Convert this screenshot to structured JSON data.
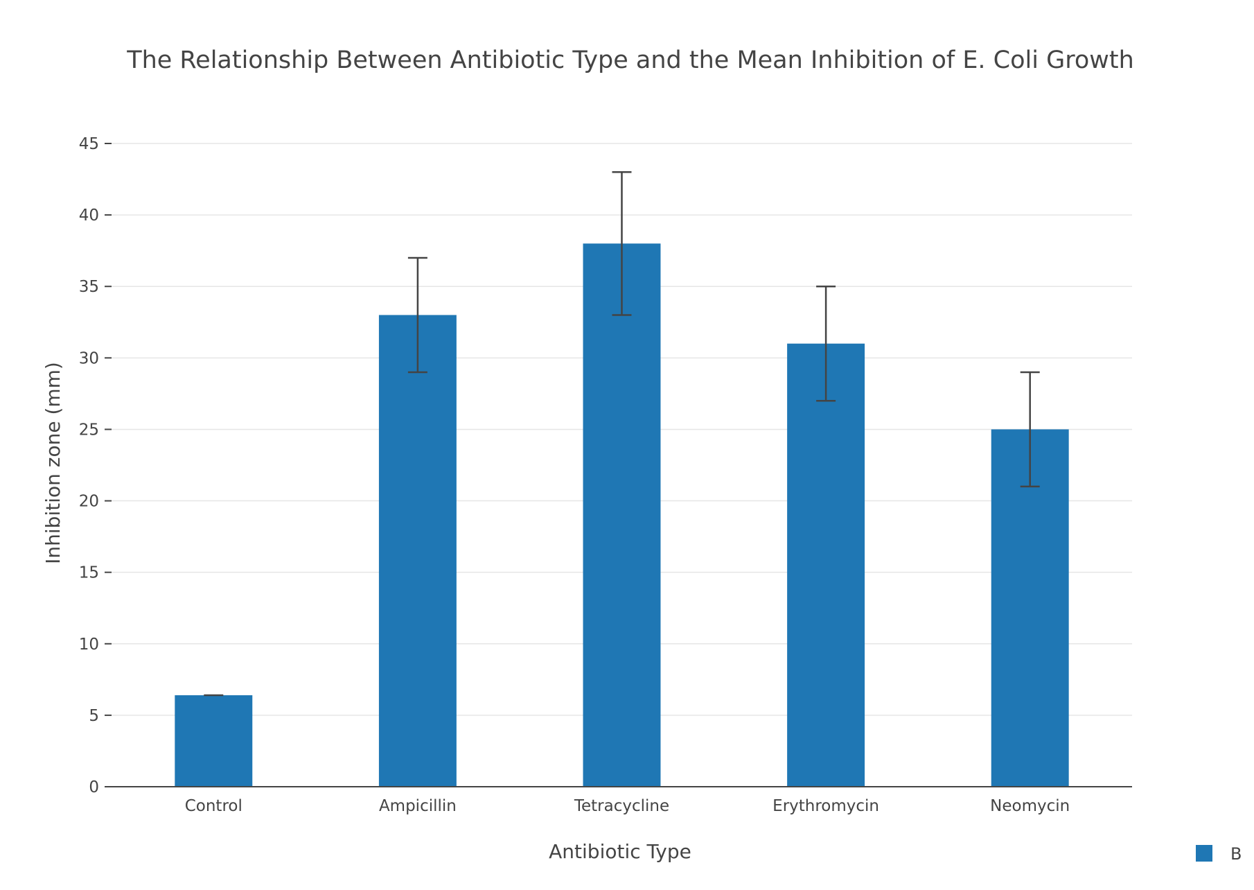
{
  "chart_data": {
    "type": "bar",
    "title": "The Relationship Between Antibiotic Type and the Mean Inhibition of E. Coli Growth",
    "xlabel": "Antibiotic Type",
    "ylabel": "Inhibition zone (mm)",
    "categories": [
      "Control",
      "Ampicillin",
      "Tetracycline",
      "Erythromycin",
      "Neomycin"
    ],
    "series": [
      {
        "name": "B",
        "values": [
          6.4,
          33,
          38,
          31,
          25
        ],
        "error": [
          0,
          4,
          5,
          4,
          4
        ],
        "color": "#1f77b4"
      }
    ],
    "ylim": [
      0,
      45
    ],
    "yticks": [
      0,
      5,
      10,
      15,
      20,
      25,
      30,
      35,
      40,
      45
    ],
    "grid": true,
    "legend_position": "bottom-right"
  }
}
